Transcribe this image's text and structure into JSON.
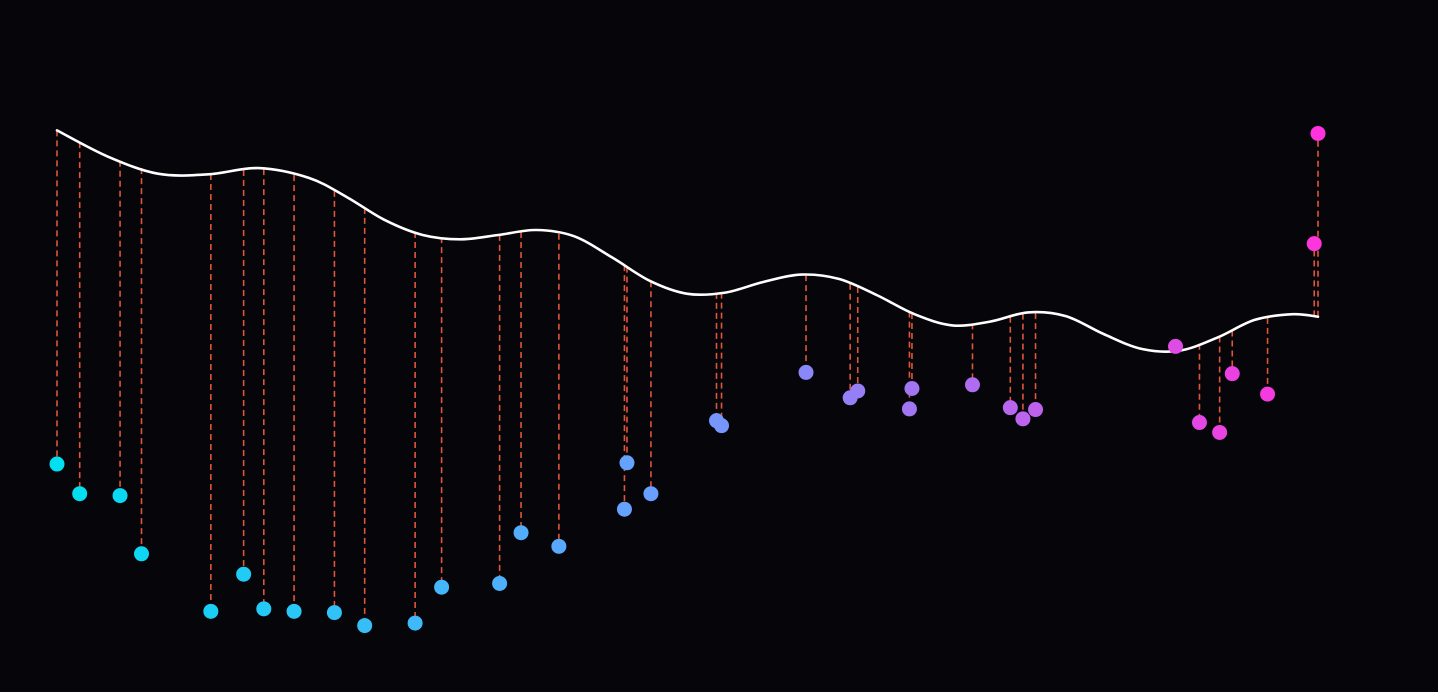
{
  "colors": {
    "background": "#05050a",
    "curve": "#ffffff",
    "residual": "#e0553a",
    "point_gradient_start": "#00e0f0",
    "point_gradient_mid": "#6f9bff",
    "point_gradient_end": "#ff33dd"
  },
  "chart_data": {
    "type": "scatter",
    "title": "",
    "xlabel": "",
    "ylabel": "",
    "axes_visible": false,
    "grid": false,
    "legend": false,
    "xlim": [
      0,
      100
    ],
    "ylim": [
      0,
      100
    ],
    "fit_curve": {
      "x": [
        0,
        4,
        8,
        12,
        16,
        20,
        23,
        26,
        29,
        32,
        35,
        38,
        41,
        44,
        47,
        50,
        53,
        56,
        59,
        62,
        65,
        68,
        71,
        74,
        77,
        80,
        83,
        86,
        89,
        92,
        95,
        98,
        100
      ],
      "y": [
        87.5,
        83.3,
        80.5,
        80.4,
        81.4,
        79.8,
        76.7,
        73.0,
        70.6,
        69.9,
        70.6,
        71.4,
        70.4,
        67.0,
        63.2,
        61.1,
        61.3,
        63.0,
        64.2,
        63.5,
        60.9,
        57.8,
        56.0,
        56.6,
        58.1,
        57.5,
        54.6,
        52.2,
        51.9,
        54.0,
        56.9,
        57.8,
        57.4
      ]
    },
    "series": [
      {
        "x": [
          0,
          1.8,
          5,
          6.7,
          12.2,
          14.8,
          16.4,
          18.8,
          22,
          24.4,
          28.4,
          30.5,
          35.1,
          36.8,
          39.8,
          45,
          45.2,
          47.1,
          52.3,
          52.7,
          59.4,
          62.9,
          63.5,
          67.6,
          67.8,
          72.6,
          75.6,
          76.6,
          77.6,
          88.7,
          90.6,
          92.2,
          93.2,
          96,
          99.7,
          100
        ],
        "y": [
          33.6,
          28.8,
          28.5,
          19.1,
          9.8,
          15.8,
          10.2,
          9.8,
          9.6,
          7.5,
          7.9,
          13.7,
          14.3,
          22.5,
          20.3,
          26.3,
          33.8,
          28.8,
          40.6,
          39.8,
          48.4,
          44.3,
          45.4,
          42.5,
          45.8,
          46.4,
          42.7,
          40.9,
          42.4,
          52.6,
          40.3,
          38.7,
          48.2,
          44.9,
          69.2,
          87.0
        ]
      }
    ]
  }
}
